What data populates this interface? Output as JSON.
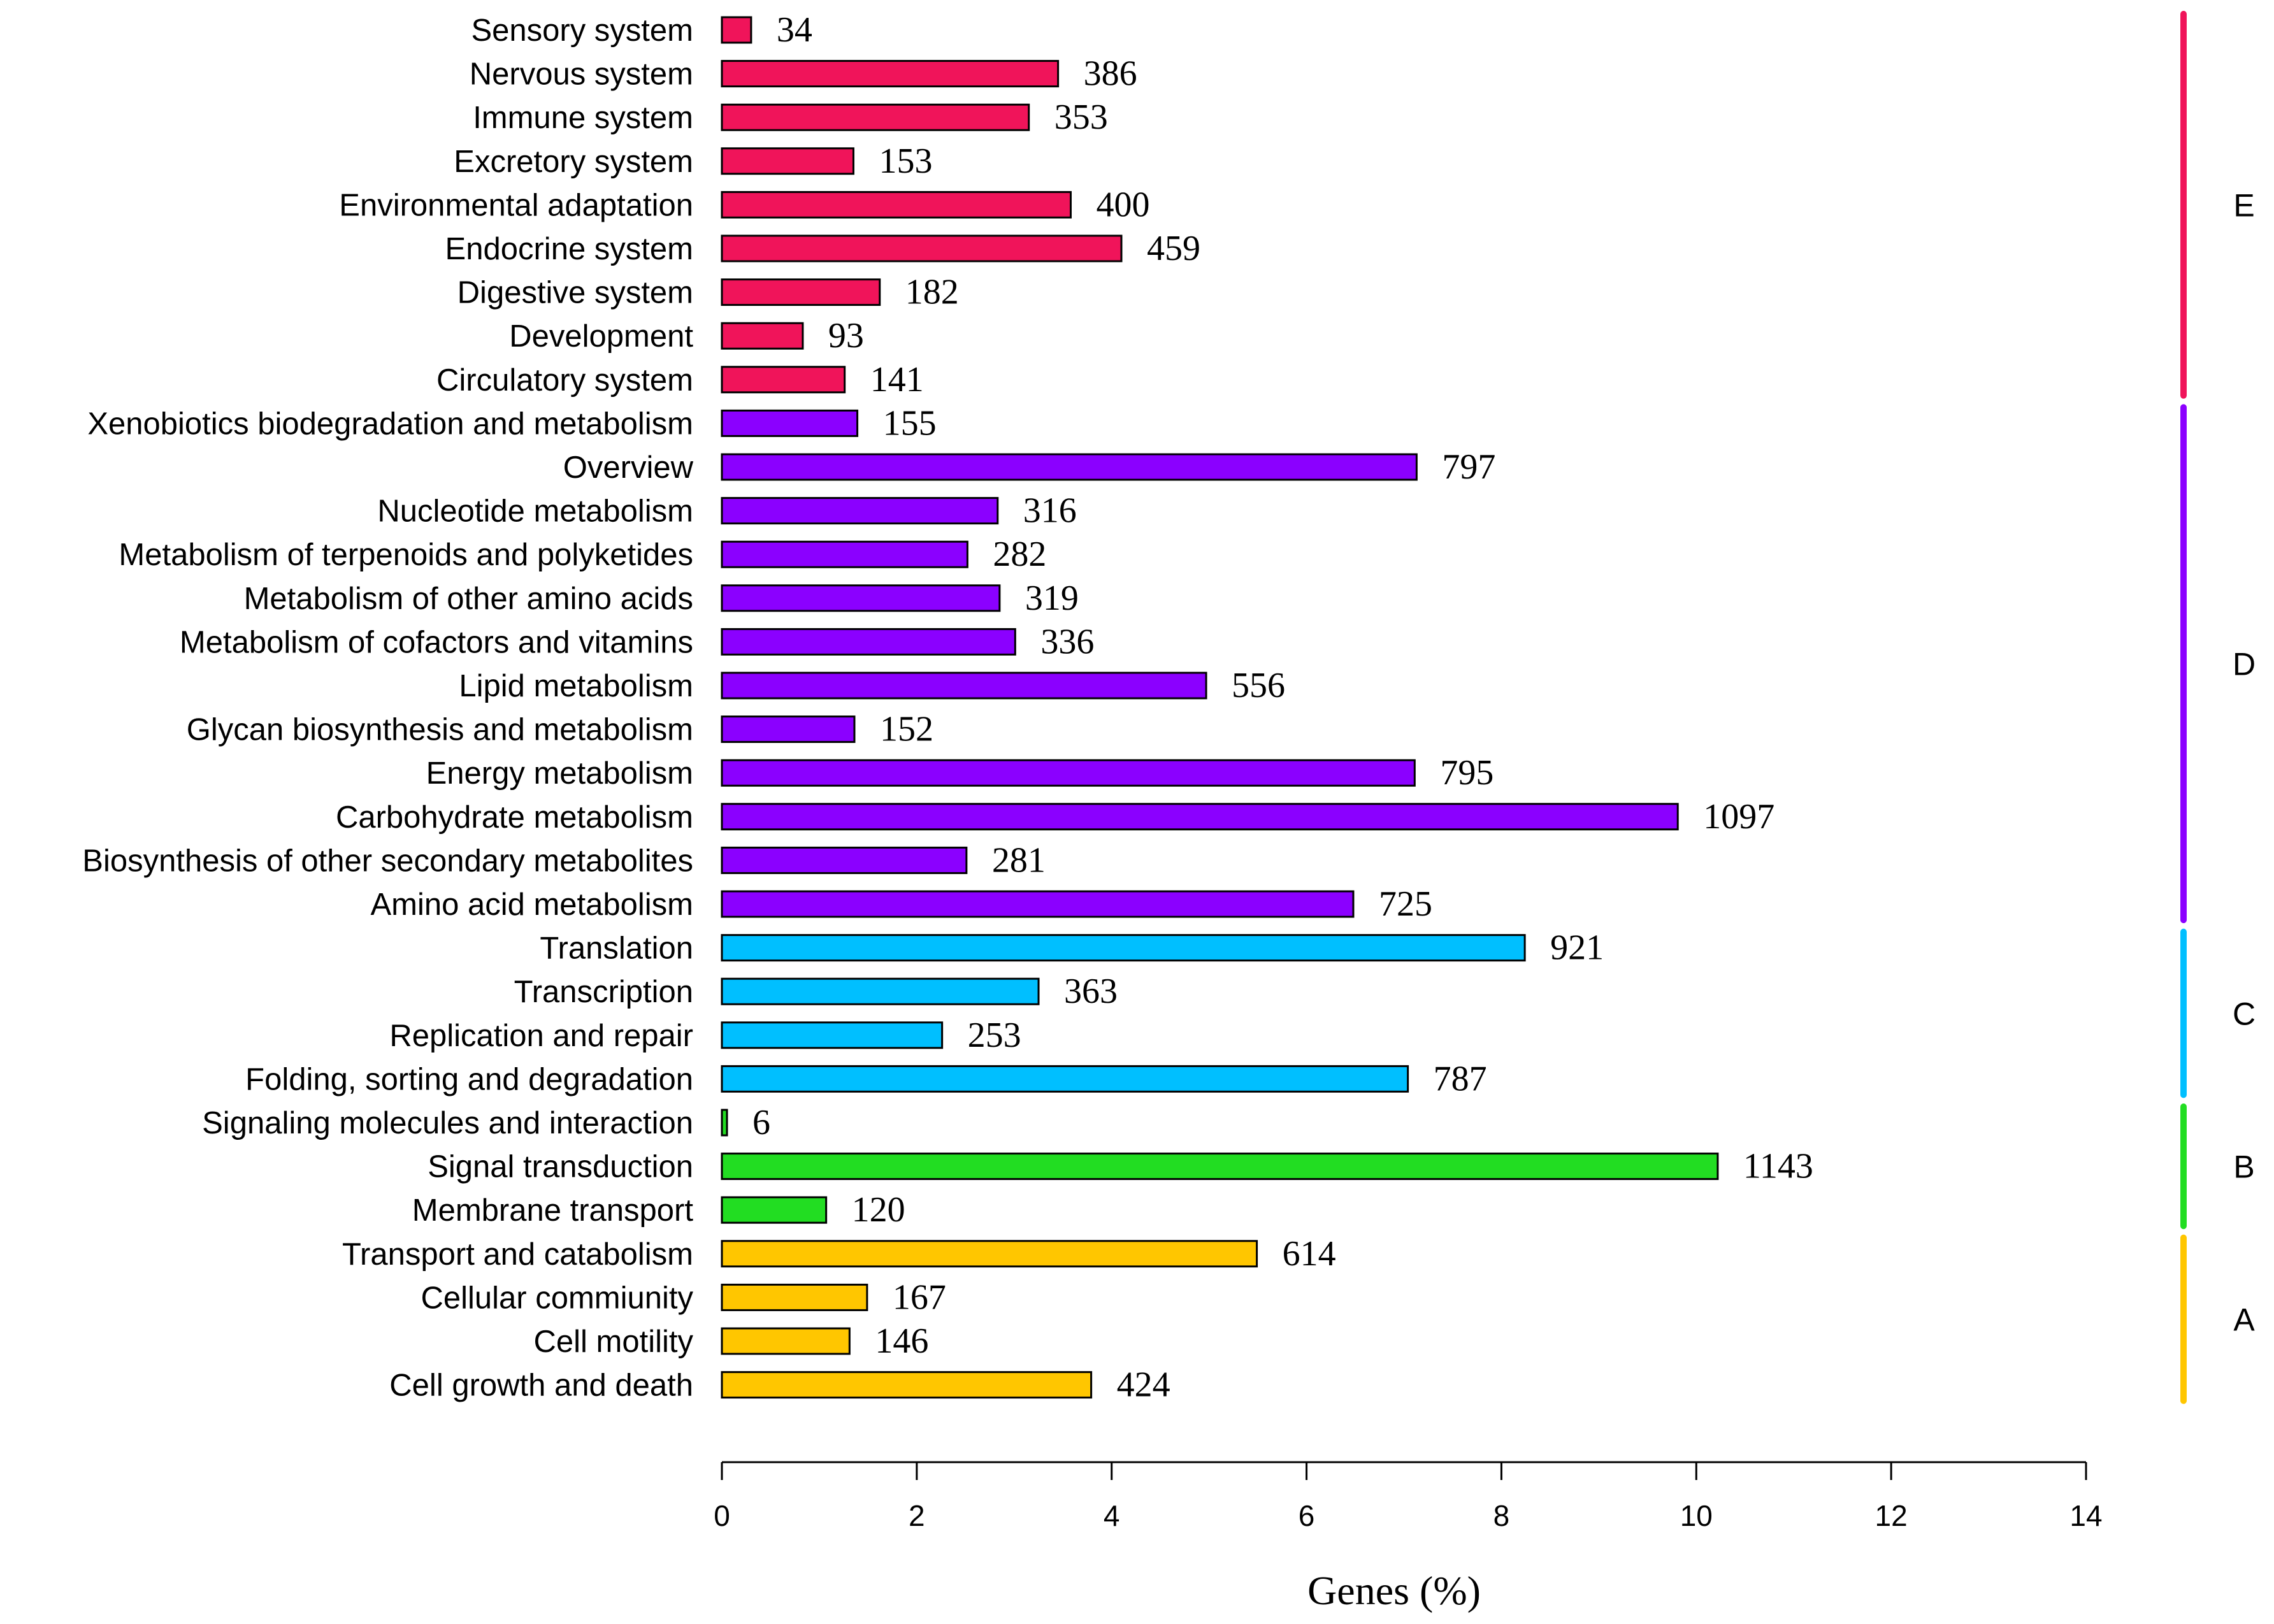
{
  "chart_data": {
    "type": "bar",
    "orientation": "horizontal",
    "title": "",
    "xlabel": "Genes (%)",
    "ylabel": "",
    "xlim": [
      0,
      14
    ],
    "xticks": [
      "0",
      "2",
      "4",
      "6",
      "8",
      "10",
      "12",
      "14"
    ],
    "grid": false,
    "groups": [
      {
        "name": "E",
        "color": "#f0145a"
      },
      {
        "name": "D",
        "color": "#8b00ff"
      },
      {
        "name": "C",
        "color": "#00bfff"
      },
      {
        "name": "B",
        "color": "#22dd22"
      },
      {
        "name": "A",
        "color": "#ffc600"
      }
    ],
    "bars": [
      {
        "category": "Sensory system",
        "percent": 0.3,
        "count": "34",
        "group": "E"
      },
      {
        "category": "Nervous system",
        "percent": 3.45,
        "count": "386",
        "group": "E"
      },
      {
        "category": "Immune system",
        "percent": 3.15,
        "count": "353",
        "group": "E"
      },
      {
        "category": "Excretory system",
        "percent": 1.35,
        "count": "153",
        "group": "E"
      },
      {
        "category": "Environmental adaptation",
        "percent": 3.58,
        "count": "400",
        "group": "E"
      },
      {
        "category": "Endocrine system",
        "percent": 4.1,
        "count": "459",
        "group": "E"
      },
      {
        "category": "Digestive system",
        "percent": 1.62,
        "count": "182",
        "group": "E"
      },
      {
        "category": "Development",
        "percent": 0.83,
        "count": "93",
        "group": "E"
      },
      {
        "category": "Circulatory system",
        "percent": 1.26,
        "count": "141",
        "group": "E"
      },
      {
        "category": "Xenobiotics biodegradation and metabolism",
        "percent": 1.39,
        "count": "155",
        "group": "D"
      },
      {
        "category": "Overview",
        "percent": 7.13,
        "count": "797",
        "group": "D"
      },
      {
        "category": "Nucleotide metabolism",
        "percent": 2.83,
        "count": "316",
        "group": "D"
      },
      {
        "category": "Metabolism of terpenoids and polyketides",
        "percent": 2.52,
        "count": "282",
        "group": "D"
      },
      {
        "category": "Metabolism of other amino acids",
        "percent": 2.85,
        "count": "319",
        "group": "D"
      },
      {
        "category": "Metabolism of cofactors and vitamins",
        "percent": 3.01,
        "count": "336",
        "group": "D"
      },
      {
        "category": "Lipid metabolism",
        "percent": 4.97,
        "count": "556",
        "group": "D"
      },
      {
        "category": "Glycan biosynthesis and metabolism",
        "percent": 1.36,
        "count": "152",
        "group": "D"
      },
      {
        "category": "Energy metabolism",
        "percent": 7.11,
        "count": "795",
        "group": "D"
      },
      {
        "category": "Carbohydrate metabolism",
        "percent": 9.81,
        "count": "1097",
        "group": "D"
      },
      {
        "category": "Biosynthesis of other secondary metabolites",
        "percent": 2.51,
        "count": "281",
        "group": "D"
      },
      {
        "category": "Amino acid metabolism",
        "percent": 6.48,
        "count": "725",
        "group": "D"
      },
      {
        "category": "Translation",
        "percent": 8.24,
        "count": "921",
        "group": "C"
      },
      {
        "category": "Transcription",
        "percent": 3.25,
        "count": "363",
        "group": "C"
      },
      {
        "category": "Replication and repair",
        "percent": 2.26,
        "count": "253",
        "group": "C"
      },
      {
        "category": "Folding, sorting and degradation",
        "percent": 7.04,
        "count": "787",
        "group": "C"
      },
      {
        "category": "Signaling molecules and interaction",
        "percent": 0.05,
        "count": "6",
        "group": "B"
      },
      {
        "category": "Signal transduction",
        "percent": 10.22,
        "count": "1143",
        "group": "B"
      },
      {
        "category": "Membrane transport",
        "percent": 1.07,
        "count": "120",
        "group": "B"
      },
      {
        "category": "Transport and catabolism",
        "percent": 5.49,
        "count": "614",
        "group": "A"
      },
      {
        "category": "Cellular commiunity",
        "percent": 1.49,
        "count": "167",
        "group": "A"
      },
      {
        "category": "Cell motility",
        "percent": 1.31,
        "count": "146",
        "group": "A"
      },
      {
        "category": "Cell growth and death",
        "percent": 3.79,
        "count": "424",
        "group": "A"
      }
    ]
  }
}
